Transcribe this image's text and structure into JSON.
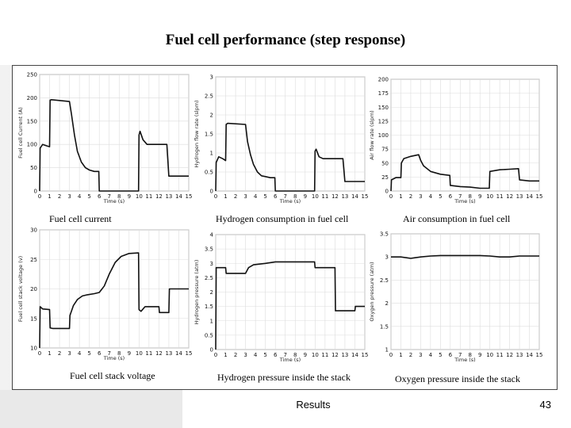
{
  "slide": {
    "title": "Fuel cell performance (step response)",
    "footer_label": "Results",
    "page_number": "43"
  },
  "chart_data": [
    {
      "type": "line",
      "caption": "Fuel cell current",
      "xlabel": "Time (s)",
      "ylabel": "Fuel cell Current (A)",
      "xlim": [
        0,
        15
      ],
      "ylim": [
        0,
        250
      ],
      "xticks": [
        0,
        1,
        2,
        3,
        4,
        5,
        6,
        7,
        8,
        9,
        10,
        11,
        12,
        13,
        14,
        15
      ],
      "yticks": [
        0,
        50,
        100,
        150,
        200,
        250
      ],
      "grid": true,
      "series": [
        {
          "x": [
            0,
            0.05,
            0.3,
            0.7,
            1,
            1.05,
            1.2,
            3,
            3.2,
            3.5,
            3.8,
            4.2,
            4.6,
            5,
            5.5,
            5.95,
            6,
            9.95,
            10,
            10.1,
            10.4,
            10.8,
            11,
            11.5,
            12,
            12.8,
            13,
            15
          ],
          "y": [
            0,
            92,
            100,
            97,
            95,
            195,
            196,
            192,
            165,
            120,
            85,
            62,
            50,
            45,
            42,
            42,
            0,
            0,
            120,
            128,
            110,
            100,
            100,
            100,
            100,
            100,
            32,
            32
          ]
        }
      ]
    },
    {
      "type": "line",
      "caption": "Hydrogen consumption in fuel cell",
      "xlabel": "Time (s)",
      "ylabel": "Hydrogen flow rate (slpm)",
      "xlim": [
        0,
        15
      ],
      "ylim": [
        0,
        3
      ],
      "xticks": [
        0,
        1,
        2,
        3,
        4,
        5,
        6,
        7,
        8,
        9,
        10,
        11,
        12,
        13,
        14,
        15
      ],
      "yticks": [
        0,
        0.5,
        1,
        1.5,
        2,
        2.5,
        3
      ],
      "grid": true,
      "series": [
        {
          "x": [
            0,
            0.05,
            0.3,
            0.7,
            1,
            1.05,
            1.2,
            3,
            3.2,
            3.5,
            3.8,
            4.2,
            4.6,
            5,
            5.5,
            5.95,
            6,
            9.95,
            10,
            10.1,
            10.4,
            10.8,
            11,
            11.5,
            12,
            12.8,
            13,
            15
          ],
          "y": [
            0,
            0.75,
            0.9,
            0.85,
            0.8,
            1.75,
            1.78,
            1.75,
            1.3,
            0.95,
            0.7,
            0.5,
            0.4,
            0.38,
            0.35,
            0.35,
            0,
            0,
            1.05,
            1.1,
            0.9,
            0.85,
            0.85,
            0.85,
            0.85,
            0.85,
            0.25,
            0.25
          ]
        }
      ]
    },
    {
      "type": "line",
      "caption": "Air consumption in fuel cell",
      "xlabel": "Time (s)",
      "ylabel": "Air flow rate (slpm)",
      "xlim": [
        0,
        15
      ],
      "ylim": [
        0,
        200
      ],
      "xticks": [
        0,
        1,
        2,
        3,
        4,
        5,
        6,
        7,
        8,
        9,
        10,
        11,
        12,
        13,
        14,
        15
      ],
      "yticks": [
        0,
        25,
        50,
        75,
        100,
        125,
        150,
        175,
        200
      ],
      "grid": true,
      "series": [
        {
          "x": [
            0,
            0.05,
            0.5,
            1,
            1.05,
            1.3,
            2,
            2.8,
            3,
            3.3,
            4,
            5,
            5.95,
            6,
            7,
            8,
            9,
            9.95,
            10,
            11,
            12,
            12.9,
            13,
            14,
            15
          ],
          "y": [
            0,
            20,
            24,
            24,
            50,
            58,
            62,
            65,
            55,
            45,
            35,
            30,
            28,
            10,
            8,
            7,
            5,
            5,
            35,
            38,
            39,
            40,
            20,
            18,
            18
          ]
        }
      ]
    },
    {
      "type": "line",
      "caption": "Fuel cell stack voltage",
      "xlabel": "Time (s)",
      "ylabel": "Fuel cell stack voltage (v)",
      "xlim": [
        0,
        15
      ],
      "ylim": [
        10,
        30
      ],
      "xticks": [
        0,
        1,
        2,
        3,
        4,
        5,
        6,
        7,
        8,
        9,
        10,
        11,
        12,
        13,
        14,
        15
      ],
      "yticks": [
        10,
        15,
        20,
        25,
        30
      ],
      "grid": true,
      "series": [
        {
          "x": [
            0,
            0.05,
            0.3,
            1,
            1.05,
            1.3,
            3,
            3.05,
            3.4,
            3.8,
            4.3,
            4.8,
            5.5,
            6,
            6.5,
            7,
            7.6,
            8.2,
            9,
            9.95,
            10,
            10.2,
            10.6,
            11,
            11.5,
            12,
            12.05,
            12.5,
            13,
            13.05,
            15
          ],
          "y": [
            10,
            17,
            16.6,
            16.5,
            13.4,
            13.3,
            13.3,
            15.5,
            17.2,
            18.2,
            18.8,
            19,
            19.2,
            19.4,
            20.5,
            22.5,
            24.5,
            25.5,
            26,
            26.1,
            16.5,
            16.2,
            17,
            17,
            17,
            17,
            16,
            16,
            16,
            20,
            20
          ]
        }
      ]
    },
    {
      "type": "line",
      "caption": "Hydrogen pressure inside the stack",
      "xlabel": "Time (s)",
      "ylabel": "Hydrogen pressure (atm)",
      "xlim": [
        0,
        15
      ],
      "ylim": [
        0,
        4
      ],
      "xticks": [
        0,
        1,
        2,
        3,
        4,
        5,
        6,
        7,
        8,
        9,
        10,
        11,
        12,
        13,
        14,
        15
      ],
      "yticks": [
        0,
        0.5,
        1,
        1.5,
        2,
        2.5,
        3,
        3.5,
        4
      ],
      "grid": true,
      "series": [
        {
          "x": [
            0,
            0.05,
            1,
            1.05,
            3,
            3.3,
            3.8,
            5,
            6,
            9.95,
            10,
            12,
            12.05,
            14,
            14.05,
            15
          ],
          "y": [
            0,
            2.85,
            2.85,
            2.65,
            2.65,
            2.85,
            2.95,
            3.0,
            3.05,
            3.05,
            2.85,
            2.85,
            1.35,
            1.35,
            1.5,
            1.5
          ]
        }
      ]
    },
    {
      "type": "line",
      "caption": "Oxygen pressure inside the stack",
      "xlabel": "Time (s)",
      "ylabel": "Oxygen pressure (atm)",
      "xlim": [
        0,
        15
      ],
      "ylim": [
        1,
        3.5
      ],
      "xticks": [
        0,
        1,
        2,
        3,
        4,
        5,
        6,
        7,
        8,
        9,
        10,
        11,
        12,
        13,
        14,
        15
      ],
      "yticks": [
        1,
        1.5,
        2,
        2.5,
        3,
        3.5
      ],
      "grid": true,
      "series": [
        {
          "x": [
            0,
            1,
            2,
            3,
            4,
            5,
            6,
            7,
            8,
            9,
            10,
            11,
            12,
            13,
            14,
            15
          ],
          "y": [
            3.0,
            3.0,
            2.97,
            3.0,
            3.02,
            3.03,
            3.03,
            3.03,
            3.03,
            3.03,
            3.02,
            3.0,
            3.0,
            3.02,
            3.02,
            3.02
          ]
        }
      ]
    }
  ]
}
